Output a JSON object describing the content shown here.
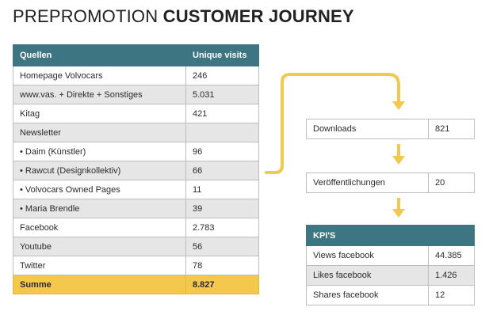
{
  "title": {
    "light": "PREPROMOTION",
    "bold": "CUSTOMER JOURNEY"
  },
  "sources": {
    "headers": [
      "Quellen",
      "Unique visits"
    ],
    "rows": [
      [
        "Homepage Volvocars",
        "246"
      ],
      [
        "www.vas. + Direkte + Sonstiges",
        "5.031"
      ],
      [
        "Kitag",
        "421"
      ],
      [
        "Newsletter",
        ""
      ],
      [
        "• Daim (Künstler)",
        "96"
      ],
      [
        "• Rawcut (Designkollektiv)",
        "66"
      ],
      [
        "• Volvocars Owned Pages",
        "11"
      ],
      [
        "• Maria Brendle",
        "39"
      ],
      [
        "Facebook",
        "2.783"
      ],
      [
        "Youtube",
        "56"
      ],
      [
        "Twitter",
        "78"
      ]
    ],
    "total": [
      "Summe",
      "8.827"
    ]
  },
  "downloads": {
    "label": "Downloads",
    "value": "821"
  },
  "publications": {
    "label": "Veröffentlichungen",
    "value": "20"
  },
  "kpis": {
    "header": "KPI'S",
    "rows": [
      [
        "Views facebook",
        "44.385"
      ],
      [
        "Likes facebook",
        "1.426"
      ],
      [
        "Shares facebook",
        "12"
      ]
    ]
  },
  "colors": {
    "teal": "#3d7682",
    "accent_yellow": "#f3c84c",
    "row_alt": "#e6e6e6"
  }
}
